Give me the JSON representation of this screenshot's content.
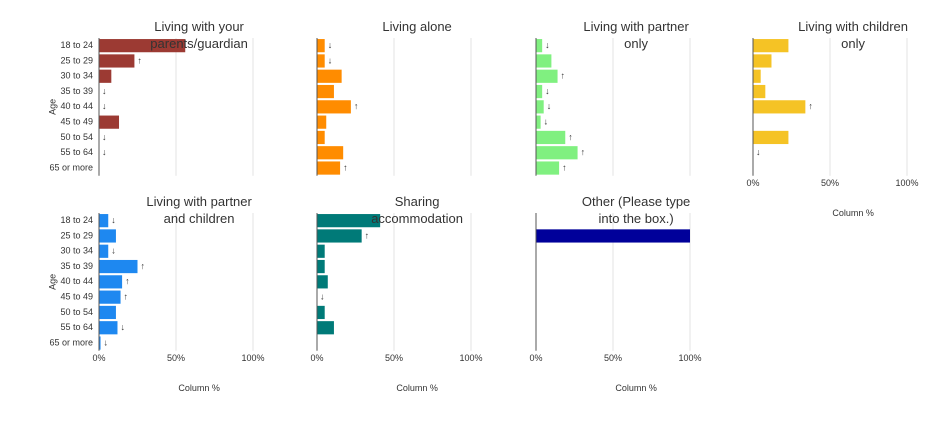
{
  "chart_data": {
    "type": "bar",
    "orientation": "horizontal",
    "categories": [
      "18 to 24",
      "25 to 29",
      "30 to 34",
      "35 to 39",
      "40 to 44",
      "45 to 49",
      "50 to 54",
      "55 to 64",
      "65 or more"
    ],
    "y_label": "Age",
    "x_label": "Column %",
    "xlim": [
      0,
      100
    ],
    "xticks": [
      {
        "value": 0,
        "label": "0%"
      },
      {
        "value": 50,
        "label": "50%"
      },
      {
        "value": 100,
        "label": "100%"
      }
    ],
    "grid": true,
    "series": [
      {
        "name": "Living with your parents/guardian",
        "color": "#9c3a33",
        "values": [
          56,
          23,
          8,
          0,
          0,
          13,
          0,
          0,
          0
        ],
        "flags": [
          null,
          "↑",
          null,
          "↓",
          "↓",
          null,
          "↓",
          "↓",
          null
        ]
      },
      {
        "name": "Living alone",
        "color": "#ff8c00",
        "values": [
          5,
          5,
          16,
          11,
          22,
          6,
          5,
          17,
          15
        ],
        "flags": [
          "↓",
          "↓",
          null,
          null,
          "↑",
          null,
          null,
          null,
          "↑"
        ]
      },
      {
        "name": "Living with partner only",
        "color": "#80f080",
        "values": [
          4,
          10,
          14,
          4,
          5,
          3,
          19,
          27,
          15
        ],
        "flags": [
          "↓",
          null,
          "↑",
          "↓",
          "↓",
          "↓",
          "↑",
          "↑",
          "↑"
        ]
      },
      {
        "name": "Living with children only",
        "color": "#f5c325",
        "values": [
          23,
          12,
          5,
          8,
          34,
          0,
          23,
          0,
          0
        ],
        "flags": [
          null,
          null,
          null,
          null,
          "↑",
          null,
          null,
          "↓",
          null
        ]
      },
      {
        "name": "Living with partner and children",
        "color": "#1e88f0",
        "values": [
          6,
          11,
          6,
          25,
          15,
          14,
          11,
          12,
          1
        ],
        "flags": [
          "↓",
          null,
          "↓",
          "↑",
          "↑",
          "↑",
          null,
          "↓",
          "↓"
        ]
      },
      {
        "name": "Sharing accommodation",
        "color": "#007a78",
        "values": [
          41,
          29,
          5,
          5,
          7,
          0,
          5,
          11,
          0
        ],
        "flags": [
          null,
          "↑",
          null,
          null,
          null,
          "↓",
          null,
          null,
          null
        ]
      },
      {
        "name": "Other (Please type into the box.)",
        "color": "#00009a",
        "values": [
          0,
          100,
          0,
          0,
          0,
          0,
          0,
          0,
          0
        ],
        "flags": [
          null,
          null,
          null,
          null,
          null,
          null,
          null,
          null,
          null
        ]
      }
    ]
  }
}
